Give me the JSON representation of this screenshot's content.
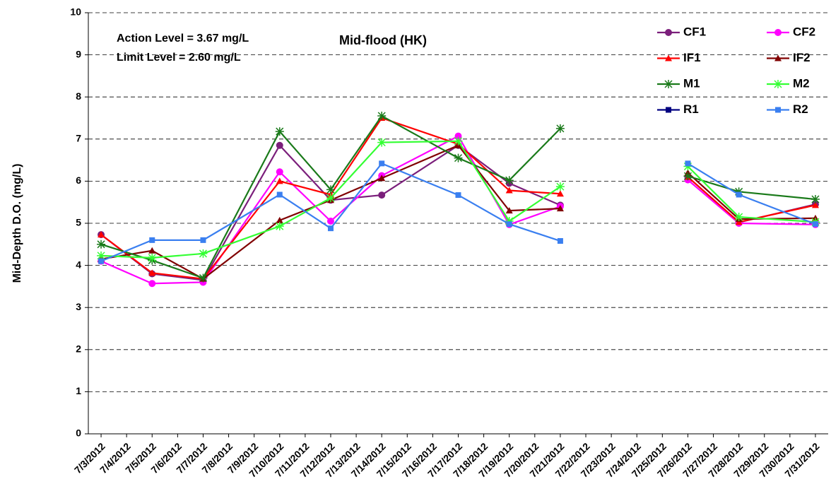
{
  "chart_data": {
    "type": "line",
    "title": "Mid-flood (HK)",
    "y_label": "Mid-Depth D.O. (mg/L)",
    "annotations": [
      "Action Level = 3.67 mg/L",
      "Limit Level = 2.60 mg/L"
    ],
    "x": [
      3,
      5,
      7,
      10,
      12,
      14,
      17,
      19,
      21,
      24,
      26,
      28,
      31
    ],
    "xlim": [
      2.5,
      31.5
    ],
    "xticks": [
      {
        "value": 3,
        "label": "7/3/2012"
      },
      {
        "value": 4,
        "label": "7/4/2012"
      },
      {
        "value": 5,
        "label": "7/5/2012"
      },
      {
        "value": 6,
        "label": "7/6/2012"
      },
      {
        "value": 7,
        "label": "7/7/2012"
      },
      {
        "value": 8,
        "label": "7/8/2012"
      },
      {
        "value": 9,
        "label": "7/9/2012"
      },
      {
        "value": 10,
        "label": "7/10/2012"
      },
      {
        "value": 11,
        "label": "7/11/2012"
      },
      {
        "value": 12,
        "label": "7/12/2012"
      },
      {
        "value": 13,
        "label": "7/13/2012"
      },
      {
        "value": 14,
        "label": "7/14/2012"
      },
      {
        "value": 15,
        "label": "7/15/2012"
      },
      {
        "value": 16,
        "label": "7/16/2012"
      },
      {
        "value": 17,
        "label": "7/17/2012"
      },
      {
        "value": 18,
        "label": "7/18/2012"
      },
      {
        "value": 19,
        "label": "7/19/2012"
      },
      {
        "value": 20,
        "label": "7/20/2012"
      },
      {
        "value": 21,
        "label": "7/21/2012"
      },
      {
        "value": 22,
        "label": "7/22/2012"
      },
      {
        "value": 23,
        "label": "7/23/2012"
      },
      {
        "value": 24,
        "label": "7/24/2012"
      },
      {
        "value": 25,
        "label": "7/25/2012"
      },
      {
        "value": 26,
        "label": "7/26/2012"
      },
      {
        "value": 27,
        "label": "7/27/2012"
      },
      {
        "value": 28,
        "label": "7/28/2012"
      },
      {
        "value": 29,
        "label": "7/29/2012"
      },
      {
        "value": 30,
        "label": "7/30/2012"
      },
      {
        "value": 31,
        "label": "7/31/2012"
      }
    ],
    "ylim": [
      0,
      10
    ],
    "yticks": [
      0,
      1,
      2,
      3,
      4,
      5,
      6,
      7,
      8,
      9,
      10
    ],
    "grid": true,
    "legend": "top-right",
    "series": [
      {
        "name": "CF1",
        "color": "#7b1f7b",
        "marker": "circle",
        "values": [
          4.73,
          3.8,
          3.65,
          6.85,
          5.55,
          5.67,
          6.85,
          5.95,
          5.43,
          null,
          6.1,
          5.02,
          5.45
        ]
      },
      {
        "name": "CF2",
        "color": "#ff00ff",
        "marker": "circle",
        "values": [
          4.1,
          3.57,
          3.6,
          6.22,
          5.05,
          6.13,
          7.07,
          4.97,
          5.4,
          null,
          6.03,
          5.0,
          4.97
        ]
      },
      {
        "name": "IF1",
        "color": "#ff0000",
        "marker": "triangle",
        "values": [
          4.73,
          3.82,
          3.68,
          6.0,
          5.68,
          7.5,
          6.88,
          5.78,
          5.7,
          null,
          6.1,
          5.03,
          5.43
        ]
      },
      {
        "name": "IF2",
        "color": "#800000",
        "marker": "triangle",
        "values": [
          4.15,
          4.35,
          3.68,
          5.07,
          5.55,
          6.07,
          6.85,
          5.3,
          5.35,
          null,
          6.2,
          5.1,
          5.12
        ]
      },
      {
        "name": "M1",
        "color": "#1a7a1a",
        "marker": "star",
        "values": [
          4.5,
          4.12,
          3.7,
          7.18,
          5.8,
          7.55,
          6.55,
          6.02,
          7.25,
          null,
          6.12,
          5.75,
          5.57
        ]
      },
      {
        "name": "M2",
        "color": "#33ff33",
        "marker": "star",
        "values": [
          4.23,
          4.18,
          4.28,
          4.93,
          5.6,
          6.92,
          6.95,
          5.05,
          5.87,
          null,
          6.35,
          5.15,
          5.03
        ]
      },
      {
        "name": "R1",
        "color": "#000080",
        "marker": "square",
        "values": [
          null,
          null,
          null,
          null,
          null,
          null,
          null,
          null,
          null,
          null,
          null,
          null,
          null
        ]
      },
      {
        "name": "R2",
        "color": "#3a7ff0",
        "marker": "square",
        "values": [
          4.1,
          4.6,
          4.6,
          5.68,
          4.88,
          6.42,
          5.67,
          4.98,
          4.58,
          null,
          6.42,
          5.68,
          4.98
        ]
      }
    ]
  }
}
